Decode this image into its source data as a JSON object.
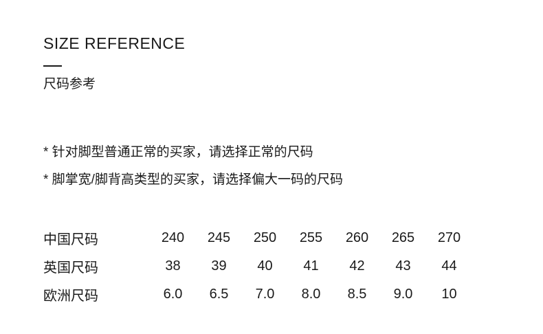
{
  "colors": {
    "background": "#ffffff",
    "text": "#1a1a1a"
  },
  "header": {
    "title_en": "SIZE REFERENCE",
    "title_zh": "尺码参考"
  },
  "notes": [
    "* 针对脚型普通正常的买家，请选择正常的尺码",
    "* 脚掌宽/脚背高类型的买家，请选择偏大一码的尺码"
  ],
  "size_table": {
    "rows": [
      {
        "label": "中国尺码",
        "values": [
          "240",
          "245",
          "250",
          "255",
          "260",
          "265",
          "270"
        ]
      },
      {
        "label": "英国尺码",
        "values": [
          "38",
          "39",
          "40",
          "41",
          "42",
          "43",
          "44"
        ]
      },
      {
        "label": "欧洲尺码",
        "values": [
          "6.0",
          "6.5",
          "7.0",
          "8.0",
          "8.5",
          "9.0",
          "10"
        ]
      }
    ]
  }
}
